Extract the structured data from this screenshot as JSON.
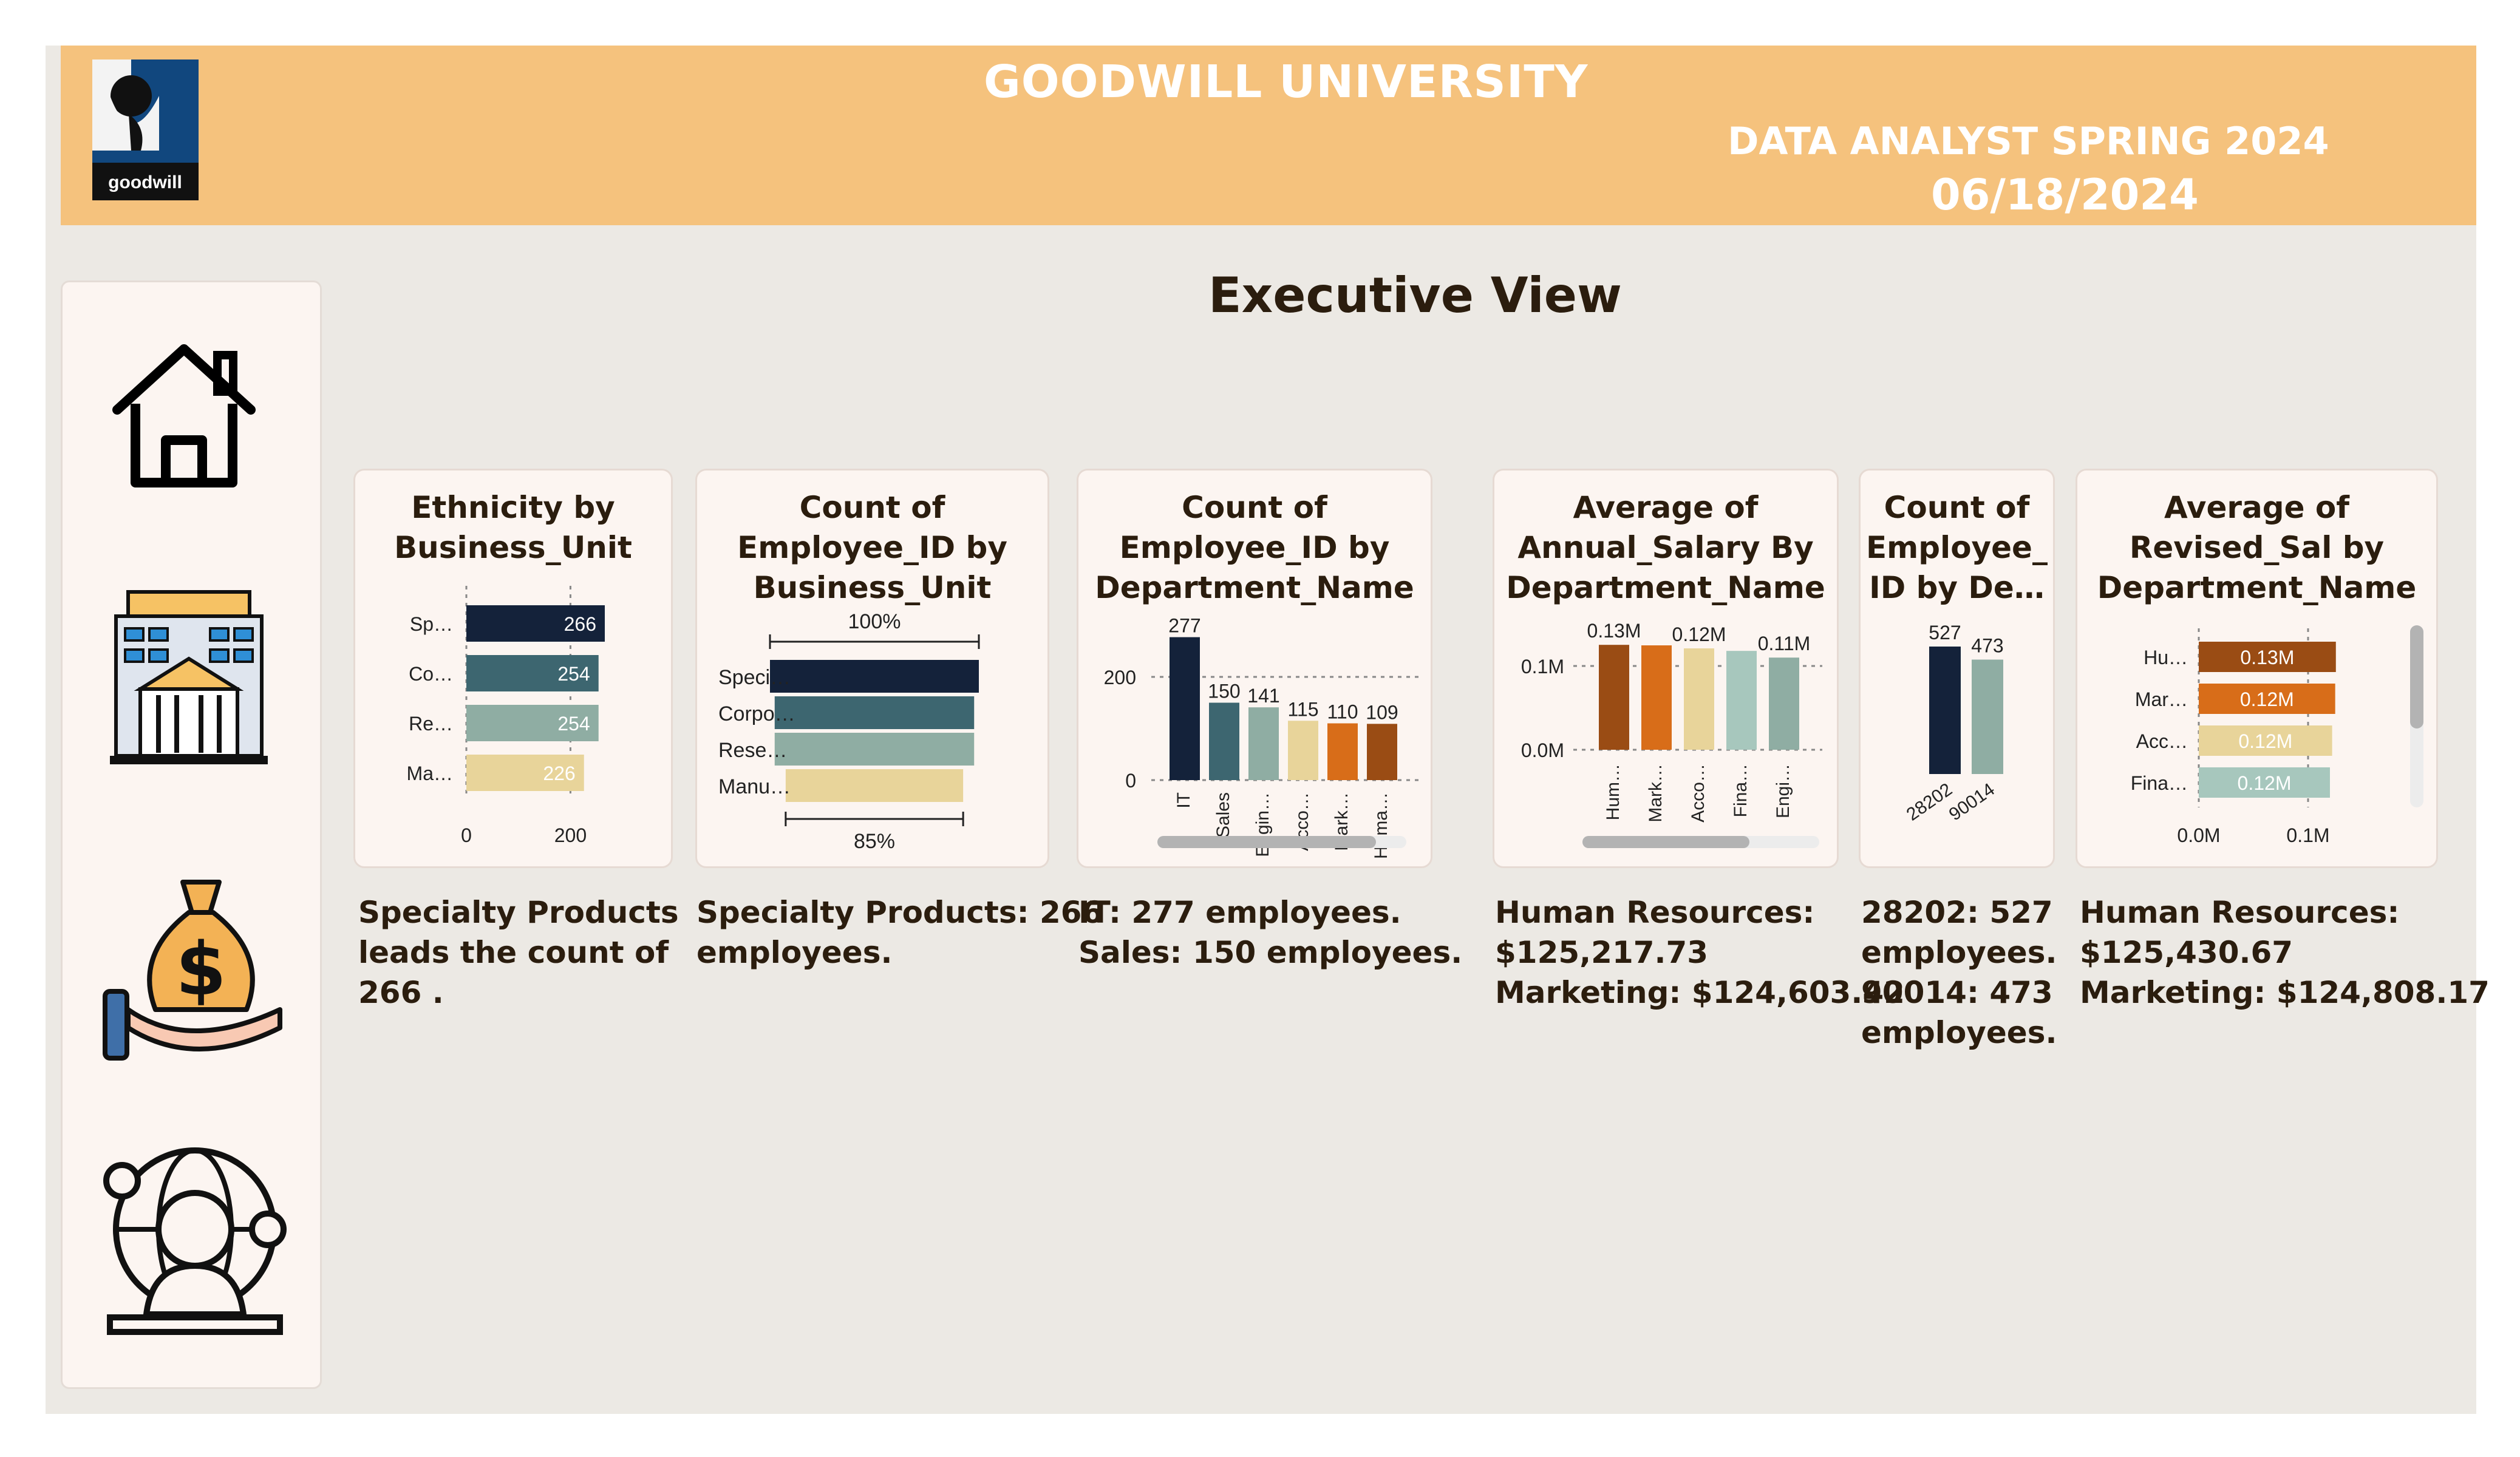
{
  "header": {
    "title": "GOODWILL UNIVERSITY",
    "subtitle": "DATA ANALYST SPRING 2024",
    "date": "06/18/2024",
    "logo_text": "goodwill"
  },
  "page_title": "Executive View",
  "nav": {
    "icons": [
      "home-icon",
      "building-icon",
      "money-bag-icon",
      "global-person-icon"
    ]
  },
  "colors": {
    "navy": "#14223a",
    "teal": "#3d6670",
    "sage": "#8fada3",
    "sand": "#e8d49a",
    "orange": "#d86d19",
    "brown": "#9a4c14",
    "mint": "#a7c7bd",
    "header_bg": "#f5c27d",
    "canvas_bg": "#ece9e4"
  },
  "cards": {
    "ethnicity": {
      "title": "Ethnicity by\nBusiness_Unit"
    },
    "emp_bu": {
      "title": "Count of\nEmployee_ID by\nBusiness_Unit"
    },
    "emp_dept": {
      "title": "Count of\nEmployee_ID by\nDepartment_Name"
    },
    "salary": {
      "title": "Average of\nAnnual_Salary By\nDepartment_Name"
    },
    "zip": {
      "title": "Count of\nEmployee_\nID by De…"
    },
    "revised": {
      "title": "Average of\nRevised_Sal by\nDepartment_Name"
    }
  },
  "insights": {
    "ethnicity": "Specialty Products\nleads the count of\n266 .",
    "emp_bu": "Specialty Products: 266\nemployees.",
    "emp_dept": "IT: 277 employees.\nSales: 150 employees.",
    "salary": "Human Resources:\n$125,217.73\nMarketing: $124,603.42",
    "zip": "28202: 527\nemployees.\n90014: 473\nemployees.",
    "revised": "Human Resources:\n$125,430.67\nMarketing: $124,808.17"
  },
  "chart_data": [
    {
      "id": "ethnicity",
      "type": "bar",
      "orientation": "horizontal",
      "categories": [
        "Sp…",
        "Co…",
        "Re…",
        "Ma…"
      ],
      "values": [
        266,
        254,
        254,
        226
      ],
      "data_labels": [
        "266",
        "254",
        "254",
        "226"
      ],
      "xticks": [
        "0",
        "200"
      ],
      "xlim": [
        0,
        280
      ]
    },
    {
      "id": "emp_bu",
      "type": "funnel",
      "categories": [
        "Speci…",
        "Corpo…",
        "Rese…",
        "Manu…"
      ],
      "values": [
        266,
        254,
        254,
        226
      ],
      "top_label": "100%",
      "bottom_label": "85%"
    },
    {
      "id": "emp_dept",
      "type": "bar",
      "categories": [
        "IT",
        "Sales",
        "Engin…",
        "Acco…",
        "Mark…",
        "Huma…"
      ],
      "values": [
        277,
        150,
        141,
        115,
        110,
        109
      ],
      "data_labels": [
        "277",
        "150",
        "141",
        "115",
        "110",
        "109"
      ],
      "yticks": [
        "0",
        "200"
      ],
      "ylim": [
        0,
        300
      ]
    },
    {
      "id": "salary",
      "type": "bar",
      "categories": [
        "Hum…",
        "Mark…",
        "Acco…",
        "Fina…",
        "Engi…"
      ],
      "values": [
        125217.73,
        124603.42,
        121000,
        118000,
        110000
      ],
      "data_labels": [
        "0.13M",
        "",
        "0.12M",
        "",
        "0.11M"
      ],
      "yticks": [
        "0.0M",
        "0.1M"
      ],
      "ylim": [
        0,
        135000
      ]
    },
    {
      "id": "zip",
      "type": "bar",
      "categories": [
        "28202",
        "90014"
      ],
      "values": [
        527,
        473
      ],
      "data_labels": [
        "527",
        "473"
      ],
      "ylim": [
        0,
        560
      ]
    },
    {
      "id": "revised",
      "type": "bar",
      "orientation": "horizontal",
      "categories": [
        "Hu…",
        "Mar…",
        "Acc…",
        "Fina…"
      ],
      "values": [
        125430.67,
        124808.17,
        122000,
        120000
      ],
      "data_labels": [
        "0.13M",
        "0.12M",
        "0.12M",
        "0.12M"
      ],
      "xticks": [
        "0.0M",
        "0.1M"
      ],
      "xlim": [
        0,
        135000
      ]
    }
  ]
}
